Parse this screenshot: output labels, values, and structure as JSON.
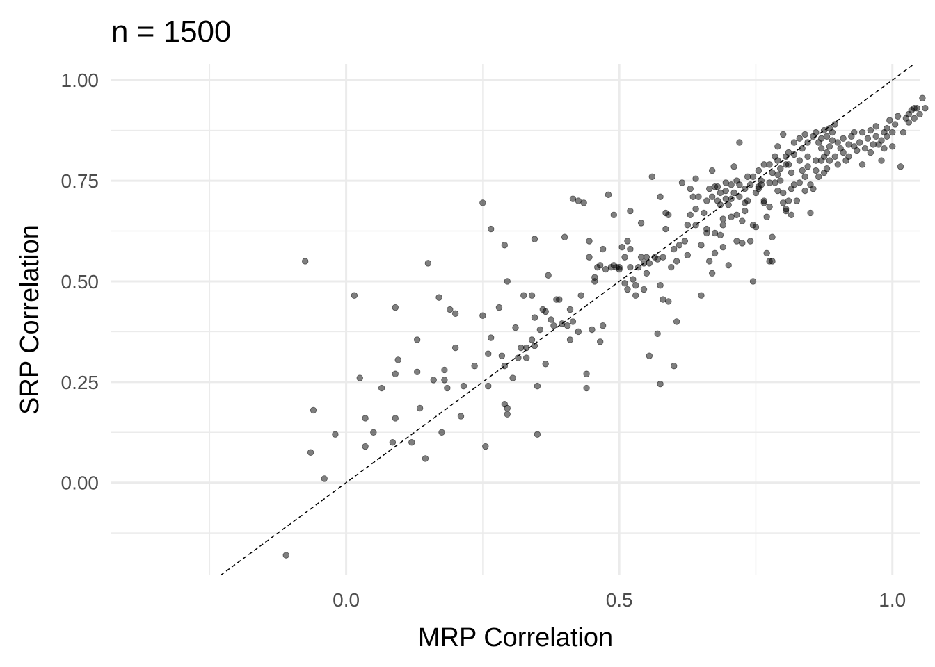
{
  "chart_data": {
    "type": "scatter",
    "title": "n = 1500",
    "xlabel": "MRP Correlation",
    "ylabel": "SRP Correlation",
    "xlim": [
      -0.43,
      1.05
    ],
    "ylim": [
      -0.23,
      1.04
    ],
    "x_ticks": [
      {
        "value": 0.0,
        "label": "0.0"
      },
      {
        "value": 0.5,
        "label": "0.5"
      },
      {
        "value": 1.0,
        "label": "1.0"
      }
    ],
    "x_minor_ticks": [
      -0.25,
      0.25,
      0.75
    ],
    "y_ticks": [
      {
        "value": 0.0,
        "label": "0.00"
      },
      {
        "value": 0.25,
        "label": "0.25"
      },
      {
        "value": 0.5,
        "label": "0.50"
      },
      {
        "value": 0.75,
        "label": "0.75"
      },
      {
        "value": 1.0,
        "label": "1.00"
      }
    ],
    "y_minor_ticks": [
      -0.125,
      0.125,
      0.375,
      0.625,
      0.875
    ],
    "grid": true,
    "reference_line": {
      "slope": 1,
      "intercept": 0,
      "style": "dashed"
    },
    "points": [
      [
        -0.11,
        -0.18
      ],
      [
        -0.075,
        0.55
      ],
      [
        -0.065,
        0.075
      ],
      [
        -0.06,
        0.18
      ],
      [
        -0.04,
        0.01
      ],
      [
        -0.02,
        0.12
      ],
      [
        0.015,
        0.465
      ],
      [
        0.025,
        0.26
      ],
      [
        0.035,
        0.09
      ],
      [
        0.035,
        0.16
      ],
      [
        0.05,
        0.125
      ],
      [
        0.065,
        0.235
      ],
      [
        0.085,
        0.1
      ],
      [
        0.09,
        0.435
      ],
      [
        0.09,
        0.27
      ],
      [
        0.09,
        0.16
      ],
      [
        0.095,
        0.305
      ],
      [
        0.12,
        0.1
      ],
      [
        0.13,
        0.355
      ],
      [
        0.13,
        0.275
      ],
      [
        0.135,
        0.185
      ],
      [
        0.145,
        0.06
      ],
      [
        0.15,
        0.545
      ],
      [
        0.16,
        0.255
      ],
      [
        0.17,
        0.46
      ],
      [
        0.175,
        0.125
      ],
      [
        0.18,
        0.28
      ],
      [
        0.18,
        0.255
      ],
      [
        0.185,
        0.235
      ],
      [
        0.19,
        0.43
      ],
      [
        0.2,
        0.335
      ],
      [
        0.2,
        0.42
      ],
      [
        0.21,
        0.165
      ],
      [
        0.215,
        0.24
      ],
      [
        0.235,
        0.29
      ],
      [
        0.25,
        0.415
      ],
      [
        0.25,
        0.695
      ],
      [
        0.255,
        0.09
      ],
      [
        0.26,
        0.32
      ],
      [
        0.26,
        0.24
      ],
      [
        0.265,
        0.63
      ],
      [
        0.265,
        0.36
      ],
      [
        0.28,
        0.435
      ],
      [
        0.285,
        0.315
      ],
      [
        0.29,
        0.59
      ],
      [
        0.29,
        0.29
      ],
      [
        0.29,
        0.195
      ],
      [
        0.295,
        0.5
      ],
      [
        0.295,
        0.17
      ],
      [
        0.295,
        0.185
      ],
      [
        0.305,
        0.26
      ],
      [
        0.31,
        0.385
      ],
      [
        0.315,
        0.31
      ],
      [
        0.32,
        0.335
      ],
      [
        0.325,
        0.465
      ],
      [
        0.33,
        0.335
      ],
      [
        0.33,
        0.31
      ],
      [
        0.34,
        0.355
      ],
      [
        0.34,
        0.465
      ],
      [
        0.345,
        0.41
      ],
      [
        0.345,
        0.605
      ],
      [
        0.345,
        0.34
      ],
      [
        0.35,
        0.24
      ],
      [
        0.35,
        0.12
      ],
      [
        0.355,
        0.38
      ],
      [
        0.36,
        0.43
      ],
      [
        0.365,
        0.425
      ],
      [
        0.365,
        0.295
      ],
      [
        0.37,
        0.515
      ],
      [
        0.375,
        0.405
      ],
      [
        0.38,
        0.39
      ],
      [
        0.385,
        0.455
      ],
      [
        0.39,
        0.455
      ],
      [
        0.395,
        0.395
      ],
      [
        0.4,
        0.61
      ],
      [
        0.405,
        0.39
      ],
      [
        0.41,
        0.355
      ],
      [
        0.41,
        0.43
      ],
      [
        0.415,
        0.4
      ],
      [
        0.415,
        0.705
      ],
      [
        0.425,
        0.375
      ],
      [
        0.425,
        0.7
      ],
      [
        0.43,
        0.465
      ],
      [
        0.435,
        0.695
      ],
      [
        0.44,
        0.235
      ],
      [
        0.44,
        0.27
      ],
      [
        0.445,
        0.6
      ],
      [
        0.445,
        0.56
      ],
      [
        0.45,
        0.38
      ],
      [
        0.455,
        0.5
      ],
      [
        0.455,
        0.51
      ],
      [
        0.46,
        0.535
      ],
      [
        0.465,
        0.35
      ],
      [
        0.465,
        0.54
      ],
      [
        0.47,
        0.58
      ],
      [
        0.47,
        0.39
      ],
      [
        0.475,
        0.53
      ],
      [
        0.48,
        0.715
      ],
      [
        0.485,
        0.535
      ],
      [
        0.49,
        0.665
      ],
      [
        0.49,
        0.54
      ],
      [
        0.495,
        0.535
      ],
      [
        0.5,
        0.535
      ],
      [
        0.5,
        0.53
      ],
      [
        0.505,
        0.585
      ],
      [
        0.51,
        0.56
      ],
      [
        0.51,
        0.495
      ],
      [
        0.515,
        0.48
      ],
      [
        0.515,
        0.6
      ],
      [
        0.52,
        0.535
      ],
      [
        0.52,
        0.675
      ],
      [
        0.52,
        0.58
      ],
      [
        0.525,
        0.505
      ],
      [
        0.53,
        0.465
      ],
      [
        0.53,
        0.49
      ],
      [
        0.535,
        0.535
      ],
      [
        0.54,
        0.645
      ],
      [
        0.54,
        0.56
      ],
      [
        0.545,
        0.545
      ],
      [
        0.545,
        0.48
      ],
      [
        0.55,
        0.52
      ],
      [
        0.55,
        0.56
      ],
      [
        0.555,
        0.315
      ],
      [
        0.555,
        0.545
      ],
      [
        0.56,
        0.76
      ],
      [
        0.565,
        0.56
      ],
      [
        0.57,
        0.555
      ],
      [
        0.57,
        0.37
      ],
      [
        0.575,
        0.49
      ],
      [
        0.575,
        0.245
      ],
      [
        0.575,
        0.71
      ],
      [
        0.58,
        0.455
      ],
      [
        0.58,
        0.56
      ],
      [
        0.585,
        0.63
      ],
      [
        0.585,
        0.67
      ],
      [
        0.59,
        0.665
      ],
      [
        0.59,
        0.45
      ],
      [
        0.595,
        0.535
      ],
      [
        0.6,
        0.58
      ],
      [
        0.6,
        0.29
      ],
      [
        0.605,
        0.4
      ],
      [
        0.605,
        0.55
      ],
      [
        0.61,
        0.59
      ],
      [
        0.615,
        0.745
      ],
      [
        0.62,
        0.6
      ],
      [
        0.625,
        0.565
      ],
      [
        0.625,
        0.64
      ],
      [
        0.63,
        0.665
      ],
      [
        0.63,
        0.73
      ],
      [
        0.635,
        0.71
      ],
      [
        0.64,
        0.755
      ],
      [
        0.64,
        0.68
      ],
      [
        0.64,
        0.64
      ],
      [
        0.645,
        0.71
      ],
      [
        0.65,
        0.59
      ],
      [
        0.65,
        0.465
      ],
      [
        0.655,
        0.67
      ],
      [
        0.66,
        0.63
      ],
      [
        0.66,
        0.62
      ],
      [
        0.665,
        0.55
      ],
      [
        0.665,
        0.73
      ],
      [
        0.67,
        0.775
      ],
      [
        0.67,
        0.52
      ],
      [
        0.675,
        0.62
      ],
      [
        0.675,
        0.57
      ],
      [
        0.68,
        0.735
      ],
      [
        0.68,
        0.7
      ],
      [
        0.685,
        0.615
      ],
      [
        0.685,
        0.69
      ],
      [
        0.69,
        0.655
      ],
      [
        0.69,
        0.64
      ],
      [
        0.69,
        0.585
      ],
      [
        0.695,
        0.745
      ],
      [
        0.695,
        0.725
      ],
      [
        0.7,
        0.69
      ],
      [
        0.7,
        0.54
      ],
      [
        0.705,
        0.705
      ],
      [
        0.705,
        0.66
      ],
      [
        0.71,
        0.785
      ],
      [
        0.71,
        0.72
      ],
      [
        0.715,
        0.6
      ],
      [
        0.715,
        0.665
      ],
      [
        0.72,
        0.845
      ],
      [
        0.72,
        0.74
      ],
      [
        0.725,
        0.595
      ],
      [
        0.725,
        0.65
      ],
      [
        0.73,
        0.675
      ],
      [
        0.73,
        0.695
      ],
      [
        0.735,
        0.7
      ],
      [
        0.735,
        0.76
      ],
      [
        0.74,
        0.6
      ],
      [
        0.745,
        0.64
      ],
      [
        0.745,
        0.5
      ],
      [
        0.75,
        0.635
      ],
      [
        0.75,
        0.72
      ],
      [
        0.755,
        0.73
      ],
      [
        0.755,
        0.735
      ],
      [
        0.76,
        0.74
      ],
      [
        0.765,
        0.695
      ],
      [
        0.765,
        0.7
      ],
      [
        0.77,
        0.66
      ],
      [
        0.77,
        0.57
      ],
      [
        0.775,
        0.55
      ],
      [
        0.775,
        0.685
      ],
      [
        0.78,
        0.61
      ],
      [
        0.78,
        0.55
      ],
      [
        0.785,
        0.745
      ],
      [
        0.79,
        0.725
      ],
      [
        0.79,
        0.8
      ],
      [
        0.795,
        0.75
      ],
      [
        0.8,
        0.72
      ],
      [
        0.8,
        0.695
      ],
      [
        0.805,
        0.675
      ],
      [
        0.805,
        0.68
      ],
      [
        0.81,
        0.79
      ],
      [
        0.81,
        0.7
      ],
      [
        0.815,
        0.665
      ],
      [
        0.815,
        0.73
      ],
      [
        0.82,
        0.74
      ],
      [
        0.82,
        0.815
      ],
      [
        0.825,
        0.7
      ],
      [
        0.83,
        0.8
      ],
      [
        0.83,
        0.745
      ],
      [
        0.835,
        0.775
      ],
      [
        0.84,
        0.725
      ],
      [
        0.84,
        0.76
      ],
      [
        0.845,
        0.785
      ],
      [
        0.845,
        0.81
      ],
      [
        0.85,
        0.67
      ],
      [
        0.85,
        0.74
      ],
      [
        0.855,
        0.73
      ],
      [
        0.86,
        0.8
      ],
      [
        0.86,
        0.775
      ],
      [
        0.865,
        0.76
      ],
      [
        0.87,
        0.8
      ],
      [
        0.87,
        0.83
      ],
      [
        0.875,
        0.81
      ],
      [
        0.875,
        0.77
      ],
      [
        0.88,
        0.78
      ],
      [
        0.88,
        0.82
      ],
      [
        0.885,
        0.835
      ],
      [
        0.885,
        0.8
      ],
      [
        0.89,
        0.85
      ],
      [
        0.895,
        0.81
      ],
      [
        0.9,
        0.79
      ],
      [
        0.9,
        0.845
      ],
      [
        0.905,
        0.83
      ],
      [
        0.91,
        0.82
      ],
      [
        0.91,
        0.855
      ],
      [
        0.915,
        0.8
      ],
      [
        0.92,
        0.84
      ],
      [
        0.92,
        0.81
      ],
      [
        0.925,
        0.86
      ],
      [
        0.93,
        0.835
      ],
      [
        0.93,
        0.87
      ],
      [
        0.935,
        0.825
      ],
      [
        0.94,
        0.845
      ],
      [
        0.945,
        0.87
      ],
      [
        0.945,
        0.79
      ],
      [
        0.95,
        0.83
      ],
      [
        0.955,
        0.855
      ],
      [
        0.96,
        0.82
      ],
      [
        0.96,
        0.875
      ],
      [
        0.965,
        0.84
      ],
      [
        0.97,
        0.885
      ],
      [
        0.97,
        0.86
      ],
      [
        0.975,
        0.84
      ],
      [
        0.98,
        0.8
      ],
      [
        0.98,
        0.85
      ],
      [
        0.985,
        0.87
      ],
      [
        0.985,
        0.83
      ],
      [
        0.99,
        0.86
      ],
      [
        0.99,
        0.88
      ],
      [
        0.995,
        0.9
      ],
      [
        1.0,
        0.87
      ],
      [
        1.0,
        0.835
      ],
      [
        1.005,
        0.89
      ],
      [
        1.01,
        0.91
      ],
      [
        1.015,
        0.785
      ],
      [
        1.02,
        0.87
      ],
      [
        1.025,
        0.905
      ],
      [
        1.03,
        0.895
      ],
      [
        1.03,
        0.915
      ],
      [
        1.035,
        0.925
      ],
      [
        1.04,
        0.93
      ],
      [
        1.04,
        0.905
      ],
      [
        1.045,
        0.93
      ],
      [
        1.05,
        0.915
      ],
      [
        1.055,
        0.955
      ],
      [
        1.06,
        0.93
      ],
      [
        0.775,
        0.79
      ],
      [
        0.785,
        0.81
      ],
      [
        0.79,
        0.835
      ],
      [
        0.8,
        0.865
      ],
      [
        0.805,
        0.81
      ],
      [
        0.81,
        0.82
      ],
      [
        0.82,
        0.845
      ],
      [
        0.83,
        0.855
      ],
      [
        0.835,
        0.83
      ],
      [
        0.84,
        0.865
      ],
      [
        0.845,
        0.845
      ],
      [
        0.855,
        0.86
      ],
      [
        0.86,
        0.87
      ],
      [
        0.865,
        0.845
      ],
      [
        0.87,
        0.855
      ],
      [
        0.875,
        0.875
      ],
      [
        0.88,
        0.86
      ],
      [
        0.885,
        0.88
      ],
      [
        0.89,
        0.87
      ],
      [
        0.895,
        0.89
      ],
      [
        0.66,
        0.7
      ],
      [
        0.67,
        0.71
      ],
      [
        0.675,
        0.735
      ],
      [
        0.685,
        0.72
      ],
      [
        0.695,
        0.705
      ],
      [
        0.705,
        0.74
      ],
      [
        0.715,
        0.75
      ],
      [
        0.72,
        0.71
      ],
      [
        0.73,
        0.73
      ],
      [
        0.74,
        0.74
      ],
      [
        0.745,
        0.76
      ],
      [
        0.755,
        0.775
      ],
      [
        0.76,
        0.75
      ],
      [
        0.765,
        0.79
      ],
      [
        0.775,
        0.745
      ],
      [
        0.78,
        0.77
      ],
      [
        0.79,
        0.765
      ],
      [
        0.795,
        0.78
      ],
      [
        0.805,
        0.79
      ],
      [
        0.815,
        0.77
      ]
    ]
  }
}
